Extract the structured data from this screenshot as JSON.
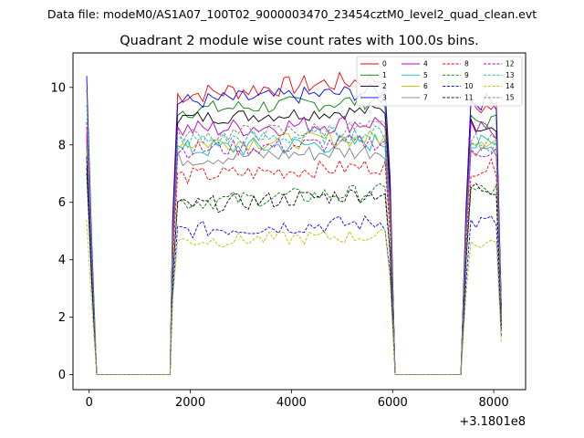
{
  "chart_data": {
    "type": "line",
    "suptitle": "Data file: modeM0/AS1A07_100T02_9000003470_23454cztM0_level2_quad_clean.evt",
    "title": "Quadrant 2 module wise count rates with 100.0s bins.",
    "xlabel": "",
    "ylabel": "",
    "x_offset_label": "+3.1801e8",
    "xlim": [
      -320,
      8630
    ],
    "ylim": [
      -0.52,
      11.2
    ],
    "x_ticks": [
      0,
      2000,
      4000,
      6000,
      8000
    ],
    "x_tick_labels": [
      "0",
      "2000",
      "4000",
      "6000",
      "8000"
    ],
    "y_ticks": [
      0,
      2,
      4,
      6,
      8,
      10
    ],
    "y_tick_labels": [
      "0",
      "2",
      "4",
      "6",
      "8",
      "10"
    ],
    "grid": false,
    "legend_position": "top-right",
    "segments": [
      {
        "start": -50,
        "n_on": 2,
        "zero_until": 1600
      },
      {
        "start": 1650,
        "n_on": 44,
        "zero_until": 7350
      },
      {
        "start": 7450,
        "n_on": 8,
        "zero_until": null
      }
    ],
    "bin_size": 100,
    "series": [
      {
        "name": "0",
        "color": "#ff0000",
        "dash": "solid",
        "first": 8.2,
        "mean": 9.9,
        "trend": 0.6,
        "noise": 0.35,
        "edge": 9.3
      },
      {
        "name": "1",
        "color": "#008000",
        "dash": "solid",
        "first": 8.0,
        "mean": 9.3,
        "trend": 0.4,
        "noise": 0.3,
        "edge": 8.8
      },
      {
        "name": "2",
        "color": "#000000",
        "dash": "solid",
        "first": 7.6,
        "mean": 9.0,
        "trend": 0.3,
        "noise": 0.25,
        "edge": 8.7
      },
      {
        "name": "3",
        "color": "#0000ff",
        "dash": "solid",
        "first": 10.4,
        "mean": 9.6,
        "trend": 0.4,
        "noise": 0.3,
        "edge": 9.5
      },
      {
        "name": "4",
        "color": "#bf00bf",
        "dash": "solid",
        "first": 8.4,
        "mean": 8.6,
        "trend": 0.3,
        "noise": 0.35,
        "edge": 8.5
      },
      {
        "name": "5",
        "color": "#00bfbf",
        "dash": "solid",
        "first": 8.0,
        "mean": 7.9,
        "trend": 0.3,
        "noise": 0.35,
        "edge": 8.0
      },
      {
        "name": "6",
        "color": "#bfbf00",
        "dash": "solid",
        "first": 7.8,
        "mean": 8.1,
        "trend": 0.2,
        "noise": 0.3,
        "edge": 8.2
      },
      {
        "name": "7",
        "color": "#808080",
        "dash": "solid",
        "first": 7.4,
        "mean": 7.6,
        "trend": 0.3,
        "noise": 0.3,
        "edge": 7.9
      },
      {
        "name": "8",
        "color": "#ff0000",
        "dash": "dashed",
        "first": 8.8,
        "mean": 7.0,
        "trend": 0.4,
        "noise": 0.3,
        "edge": 7.2
      },
      {
        "name": "9",
        "color": "#008000",
        "dash": "dashed",
        "first": 7.0,
        "mean": 6.1,
        "trend": 0.4,
        "noise": 0.3,
        "edge": 6.4
      },
      {
        "name": "10",
        "color": "#0000ff",
        "dash": "dashed",
        "first": 7.6,
        "mean": 5.1,
        "trend": 0.3,
        "noise": 0.3,
        "edge": 5.3
      },
      {
        "name": "11",
        "color": "#000000",
        "dash": "dashed",
        "first": 7.2,
        "mean": 6.0,
        "trend": 0.5,
        "noise": 0.3,
        "edge": 6.5
      },
      {
        "name": "12",
        "color": "#bf00bf",
        "dash": "dashed",
        "first": 8.6,
        "mean": 7.9,
        "trend": 0.3,
        "noise": 0.3,
        "edge": 7.8
      },
      {
        "name": "13",
        "color": "#00bfbf",
        "dash": "dashed",
        "first": 9.4,
        "mean": 8.2,
        "trend": 0.3,
        "noise": 0.3,
        "edge": 8.0
      },
      {
        "name": "14",
        "color": "#bfbf00",
        "dash": "dashed",
        "first": 5.4,
        "mean": 4.7,
        "trend": 0.2,
        "noise": 0.25,
        "edge": 4.6
      },
      {
        "name": "15",
        "color": "#808080",
        "dash": "dashed",
        "first": 9.9,
        "mean": 8.4,
        "trend": 0.3,
        "noise": 0.3,
        "edge": 8.1
      }
    ]
  }
}
